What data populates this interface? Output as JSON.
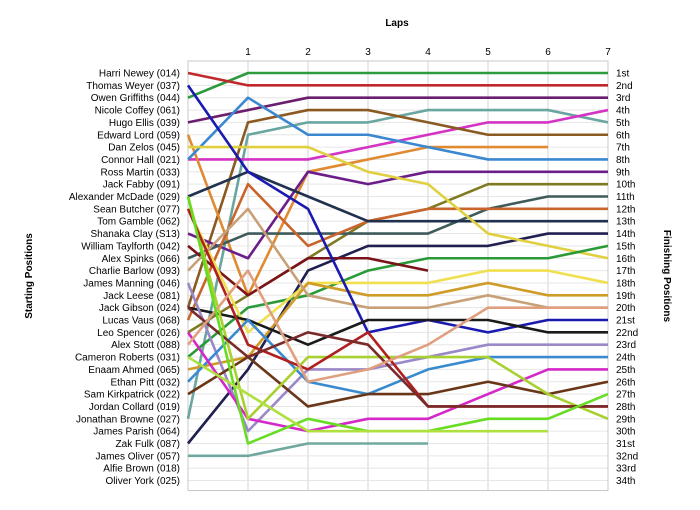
{
  "chart_data": {
    "type": "line",
    "title": "",
    "xlabel": "Laps",
    "ylabel_left": "Starting Positions",
    "ylabel_right": "Finishing Positions",
    "x": [
      0,
      1,
      2,
      3,
      4,
      5,
      6,
      7
    ],
    "x_tick_labels": [
      "1",
      "2",
      "3",
      "4",
      "5",
      "6",
      "7"
    ],
    "y_range": [
      1,
      34
    ],
    "y_inverted": true,
    "grid": true,
    "starting_labels": [
      "Harri Newey (014)",
      "Thomas Weyer (037)",
      "Owen Griffiths (044)",
      "Nicole Coffey (061)",
      "Hugo Ellis (039)",
      "Edward Lord (059)",
      "Dan Zelos (045)",
      "Connor Hall (021)",
      "Ross Martin (033)",
      "Jack Fabby (091)",
      "Alexander McDade (029)",
      "Sean Butcher (077)",
      "Tom Gamble (062)",
      "Shanaka Clay (S13)",
      "William Taylforth (042)",
      "Alex Spinks (066)",
      "Charlie Barlow (093)",
      "James Manning (046)",
      "Jack Leese (081)",
      "Jack Gibson (024)",
      "Lucas Vaus (068)",
      "Leo Spencer (026)",
      "Alex Stott (088)",
      "Cameron Roberts (031)",
      "Enaam Ahmed (065)",
      "Ethan Pitt (032)",
      "Sam Kirkpatrick (022)",
      "Jordan Collard (019)",
      "Jonathan Browne (027)",
      "James Parish (064)",
      "Zak Fulk (087)",
      "James Oliver (057)",
      "Alfie Brown (018)",
      "Oliver York (025)"
    ],
    "finishing_labels": [
      "1st",
      "2nd",
      "3rd",
      "4th",
      "5th",
      "6th",
      "7th",
      "8th",
      "9th",
      "10th",
      "11th",
      "12th",
      "13th",
      "14th",
      "15th",
      "16th",
      "17th",
      "18th",
      "19th",
      "20th",
      "21st",
      "22nd",
      "23rd",
      "24th",
      "25th",
      "26th",
      "27th",
      "28th",
      "29th",
      "30th",
      "31st",
      "32nd",
      "33rd",
      "34th"
    ],
    "series": [
      {
        "color": "#2e9a3e",
        "values": [
          3,
          1,
          1,
          1,
          1,
          1,
          1,
          1
        ]
      },
      {
        "color": "#c0282c",
        "values": [
          1,
          2,
          2,
          2,
          2,
          2,
          2,
          2
        ]
      },
      {
        "color": "#6b1e6e",
        "values": [
          5,
          4,
          3,
          3,
          3,
          3,
          3,
          3
        ]
      },
      {
        "color": "#6aa6a0",
        "values": [
          29,
          6,
          5,
          5,
          4,
          4,
          4,
          5
        ]
      },
      {
        "color": "#d433c4",
        "values": [
          8,
          8,
          8,
          7,
          6,
          5,
          5,
          4
        ]
      },
      {
        "color": "#8a5a22",
        "values": [
          20,
          5,
          4,
          4,
          5,
          6,
          6,
          6
        ]
      },
      {
        "color": "#e08a32",
        "values": [
          6,
          19,
          9,
          8,
          7,
          7,
          7,
          null
        ]
      },
      {
        "color": "#3b88d0",
        "values": [
          8,
          3,
          6,
          6,
          7,
          8,
          8,
          8
        ]
      },
      {
        "color": "#6b1e8a",
        "values": [
          14,
          16,
          9,
          10,
          9,
          9,
          9,
          9
        ]
      },
      {
        "color": "#7f7a22",
        "values": [
          22,
          19,
          16,
          13,
          12,
          10,
          10,
          10
        ]
      },
      {
        "color": "#3f5a5a",
        "values": [
          16,
          14,
          14,
          14,
          14,
          12,
          11,
          11
        ]
      },
      {
        "color": "#c8642c",
        "values": [
          21,
          10,
          15,
          13,
          12,
          12,
          12,
          12
        ]
      },
      {
        "color": "#20304f",
        "values": [
          11,
          9,
          11,
          13,
          13,
          13,
          13,
          13
        ]
      },
      {
        "color": "#202050",
        "values": [
          31,
          25,
          17,
          15,
          15,
          15,
          14,
          14
        ]
      },
      {
        "color": "#e0d040",
        "values": [
          7,
          7,
          7,
          9,
          10,
          14,
          15,
          16
        ]
      },
      {
        "color": "#2a9a38",
        "values": [
          24,
          20,
          19,
          17,
          16,
          16,
          16,
          15
        ]
      },
      {
        "color": "#7a1418",
        "values": [
          15,
          19,
          16,
          16,
          17,
          null,
          null,
          null
        ]
      },
      {
        "color": "#f0e050",
        "values": [
          12,
          22,
          18,
          18,
          18,
          17,
          17,
          18
        ]
      },
      {
        "color": "#d09c28",
        "values": [
          25,
          24,
          18,
          19,
          19,
          18,
          19,
          19
        ]
      },
      {
        "color": "#c8a078",
        "values": [
          17,
          12,
          19,
          20,
          20,
          19,
          20,
          20
        ]
      },
      {
        "color": "#1a1ab0",
        "values": [
          2,
          9,
          12,
          22,
          21,
          22,
          21,
          21
        ]
      },
      {
        "color": "#1a1a1a",
        "values": [
          20,
          21,
          23,
          21,
          21,
          21,
          22,
          22
        ]
      },
      {
        "color": "#9a88c8",
        "values": [
          18,
          30,
          25,
          25,
          24,
          23,
          23,
          23
        ]
      },
      {
        "color": "#3a8ad0",
        "values": [
          26,
          21,
          26,
          27,
          25,
          24,
          24,
          24
        ]
      },
      {
        "color": "#d428c8",
        "values": [
          22,
          29,
          30,
          29,
          29,
          27,
          25,
          25
        ]
      },
      {
        "color": "#6a3618",
        "values": [
          27,
          24,
          28,
          27,
          27,
          26,
          27,
          26
        ]
      },
      {
        "color": "#a8d030",
        "values": [
          11,
          29,
          24,
          24,
          24,
          24,
          27,
          29
        ]
      },
      {
        "color": "#b02020",
        "values": [
          12,
          23,
          25,
          22,
          28,
          28,
          28,
          28
        ]
      },
      {
        "color": "#7a2a2a",
        "values": [
          20,
          24,
          22,
          23,
          28,
          28,
          28,
          28
        ]
      },
      {
        "color": "#e0a080",
        "values": [
          23,
          17,
          26,
          25,
          23,
          20,
          20,
          20
        ]
      },
      {
        "color": "#66dd22",
        "values": [
          11,
          31,
          29,
          30,
          30,
          29,
          29,
          27
        ]
      },
      {
        "color": "#b0e040",
        "values": [
          24,
          27,
          30,
          30,
          30,
          30,
          30,
          null
        ]
      },
      {
        "color": "#70a8a0",
        "values": [
          32,
          32,
          31,
          31,
          31,
          null,
          null,
          null
        ]
      }
    ]
  }
}
